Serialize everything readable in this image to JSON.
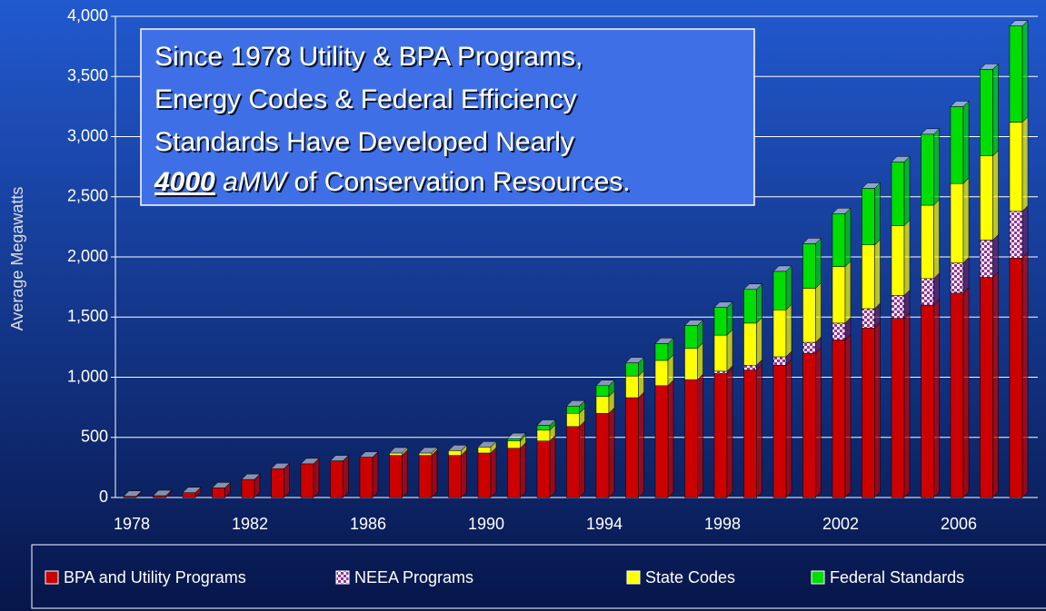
{
  "chart_data": {
    "type": "bar",
    "stacked": true,
    "ylabel": "Average Megawatts",
    "annotation": {
      "lines": [
        "Since 1978 Utility & BPA Programs,",
        "Energy Codes & Federal Efficiency",
        "Standards Have Developed Nearly"
      ],
      "last_line": {
        "number": "4000",
        "unit": "aMW",
        "rest": "of Conservation Resources."
      }
    },
    "categories": [
      "1978",
      null,
      null,
      null,
      "1982",
      null,
      null,
      null,
      "1986",
      null,
      null,
      null,
      "1990",
      null,
      null,
      null,
      "1994",
      null,
      null,
      null,
      "1998",
      null,
      null,
      null,
      "2002",
      null,
      null,
      null,
      "2006",
      null,
      null
    ],
    "series": [
      {
        "name": "BPA and Utility Programs",
        "color": "#cc0000",
        "values": [
          10,
          15,
          40,
          80,
          150,
          240,
          280,
          305,
          335,
          350,
          350,
          350,
          370,
          410,
          470,
          590,
          700,
          830,
          930,
          980,
          1030,
          1060,
          1100,
          1200,
          1310,
          1410,
          1490,
          1600,
          1700,
          1830,
          1990
        ]
      },
      {
        "name": "NEEA Programs",
        "color": "#993399",
        "values": [
          0,
          0,
          0,
          0,
          0,
          0,
          0,
          0,
          0,
          0,
          0,
          0,
          0,
          0,
          0,
          0,
          0,
          0,
          0,
          0,
          20,
          40,
          70,
          90,
          140,
          160,
          190,
          220,
          250,
          310,
          390
        ]
      },
      {
        "name": "State Codes",
        "color": "#ffff00",
        "values": [
          0,
          0,
          0,
          0,
          0,
          0,
          0,
          0,
          0,
          20,
          20,
          40,
          50,
          60,
          90,
          110,
          140,
          180,
          210,
          260,
          300,
          350,
          390,
          450,
          470,
          530,
          580,
          610,
          660,
          700,
          740
        ]
      },
      {
        "name": "Federal Standards",
        "color": "#00dd00",
        "values": [
          0,
          0,
          0,
          0,
          0,
          0,
          0,
          0,
          0,
          0,
          0,
          0,
          0,
          20,
          40,
          60,
          90,
          110,
          140,
          190,
          230,
          280,
          320,
          370,
          440,
          470,
          530,
          590,
          640,
          720,
          800
        ]
      }
    ],
    "ylim": [
      0,
      4000
    ],
    "yticks": [
      0,
      500,
      {
        "value": 1000,
        "label": "1,000"
      },
      {
        "value": 1500,
        "label": "1,500"
      },
      {
        "value": 2000,
        "label": "2,000"
      },
      {
        "value": 2500,
        "label": "2,500"
      },
      {
        "value": 3000,
        "label": "3,000"
      },
      {
        "value": 3500,
        "label": "3,500"
      },
      {
        "value": 4000,
        "label": "4,000"
      }
    ],
    "grid": true
  }
}
